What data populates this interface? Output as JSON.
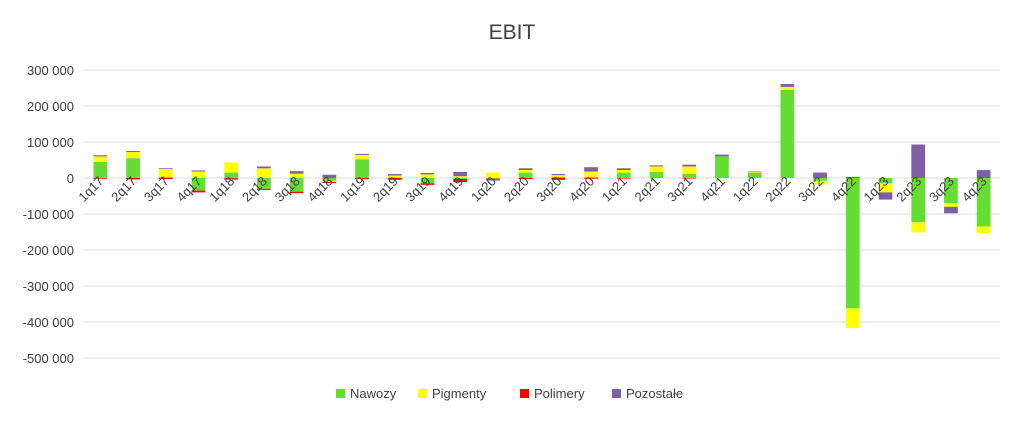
{
  "chart_data": {
    "type": "bar",
    "stacked": true,
    "title": "EBIT",
    "xlabel": "",
    "ylabel": "",
    "ylim": [
      -500000,
      300000
    ],
    "yticks": [
      300000,
      200000,
      100000,
      0,
      -100000,
      -200000,
      -300000,
      -400000,
      -500000
    ],
    "ytick_labels": [
      "300 000",
      "200 000",
      "100 000",
      "0",
      "-100 000",
      "-200 000",
      "-300 000",
      "-400 000",
      "-500 000"
    ],
    "grid": true,
    "legend_position": "bottom",
    "categories": [
      "1q17",
      "2q17",
      "3q17",
      "4q17",
      "1q18",
      "2q18",
      "3q18",
      "4q18",
      "1q19",
      "2q19",
      "3q19",
      "4q19",
      "1q20",
      "2q20",
      "3q20",
      "4q20",
      "1q21",
      "2q21",
      "3q21",
      "4q21",
      "1q22",
      "2q22",
      "3q22",
      "4q22",
      "1q23",
      "2q23",
      "3q23",
      "4q23"
    ],
    "series": [
      {
        "name": "Nawozy",
        "color": "#66dd33",
        "values": [
          45000,
          55000,
          3000,
          -35000,
          15000,
          -30000,
          -38000,
          -8000,
          52000,
          2000,
          -15000,
          -3000,
          -2000,
          15000,
          3000,
          3000,
          15000,
          17000,
          12000,
          60000,
          14000,
          245000,
          -8000,
          -362000,
          -15000,
          -123000,
          -70000,
          -135000
        ]
      },
      {
        "name": "Pigmenty",
        "color": "#ffff00",
        "values": [
          15000,
          17000,
          22000,
          18000,
          28000,
          27000,
          12000,
          -3000,
          12000,
          5000,
          10000,
          5000,
          15000,
          7000,
          5000,
          15000,
          7000,
          15000,
          20000,
          0,
          2000,
          8000,
          -10000,
          -55000,
          -25000,
          -28000,
          -10000,
          -18000
        ]
      },
      {
        "name": "Polimery",
        "color": "#ff0000",
        "values": [
          -2000,
          -4000,
          -3000,
          -5000,
          -2000,
          -3000,
          -4000,
          -3000,
          -3000,
          -5000,
          -4000,
          -8000,
          -2000,
          -3000,
          -5000,
          -2000,
          -1000,
          0,
          -1000,
          0,
          0,
          0,
          0,
          0,
          0,
          0,
          0,
          0
        ]
      },
      {
        "name": "Pozostałe",
        "color": "#7f5fa5",
        "values": [
          3000,
          3000,
          2000,
          3000,
          -3000,
          5000,
          7000,
          9000,
          3000,
          4000,
          4000,
          12000,
          -3000,
          5000,
          3000,
          12000,
          5000,
          3000,
          5000,
          5000,
          2000,
          8000,
          15000,
          3000,
          -20000,
          93000,
          -18000,
          22000
        ]
      }
    ]
  }
}
